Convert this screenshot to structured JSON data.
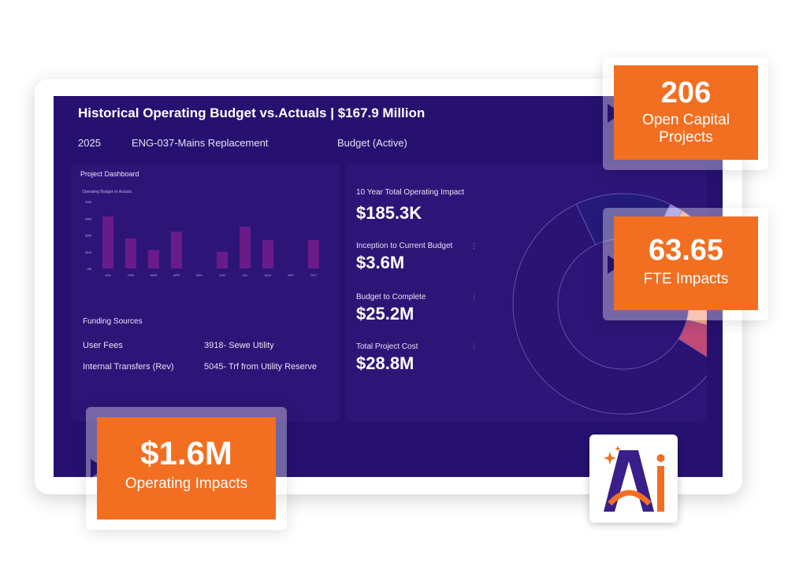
{
  "header": {
    "title": "Historical Operating Budget vs.Actuals | $167.9 Million",
    "year": "2025",
    "project": "ENG-037-Mains Replacement",
    "budget_status": "Budget (Active)"
  },
  "project_dashboard": {
    "title": "Project Dashboard",
    "chart_data": {
      "type": "bar",
      "title": "Operating Budget vs Actuals",
      "categories": [
        "JAN",
        "FEB",
        "MAR",
        "APR",
        "MAY",
        "JUN",
        "JUL",
        "AUG",
        "SEP",
        "OCT"
      ],
      "values": [
        3.1,
        1.8,
        1.1,
        2.2,
        0,
        1.0,
        2.5,
        1.7,
        0,
        1.7
      ],
      "ytick_labels": [
        "$4M",
        "$3M",
        "$2M",
        "$1M",
        "0M"
      ],
      "ylim": [
        0,
        4
      ],
      "color": "#6a1b8a"
    },
    "funding_title": "Funding Sources",
    "funding": [
      {
        "source": "User Fees",
        "account": "3918- Sewe Utility"
      },
      {
        "source": "Internal Transfers (Rev)",
        "account": "5045- Trf from Utility Reserve"
      }
    ]
  },
  "metrics": [
    {
      "label": "10 Year Total Operating Impact",
      "value": "$185.3K"
    },
    {
      "label": "Inception to Current Budget",
      "value": "$3.6M"
    },
    {
      "label": "Budget to Complete",
      "value": "$25.2M"
    },
    {
      "label": "Total Project Cost",
      "value": "$28.8M"
    }
  ],
  "donut": {
    "chart_data": {
      "type": "pie",
      "slices": [
        {
          "value": 14,
          "color": "#241a7a"
        },
        {
          "value": 2,
          "color": "#8a86d8"
        },
        {
          "value": 4,
          "color": "#f0a070"
        },
        {
          "value": 6,
          "color": "#2a1a6e"
        },
        {
          "value": 10,
          "color": "#f5a58a"
        },
        {
          "value": 5,
          "color": "#c04a78"
        },
        {
          "value": 59,
          "color": "#2a1372"
        }
      ]
    }
  },
  "callouts": {
    "projects": {
      "number": "206",
      "text_line1": "Open Capital",
      "text_line2": "Projects"
    },
    "fte": {
      "number": "63.65",
      "text": "FTE Impacts"
    },
    "operating": {
      "number": "$1.6M",
      "text": "Operating Impacts"
    }
  },
  "colors": {
    "screen": "#261170",
    "accent": "#f26f21",
    "bar": "#6a1b8a"
  }
}
